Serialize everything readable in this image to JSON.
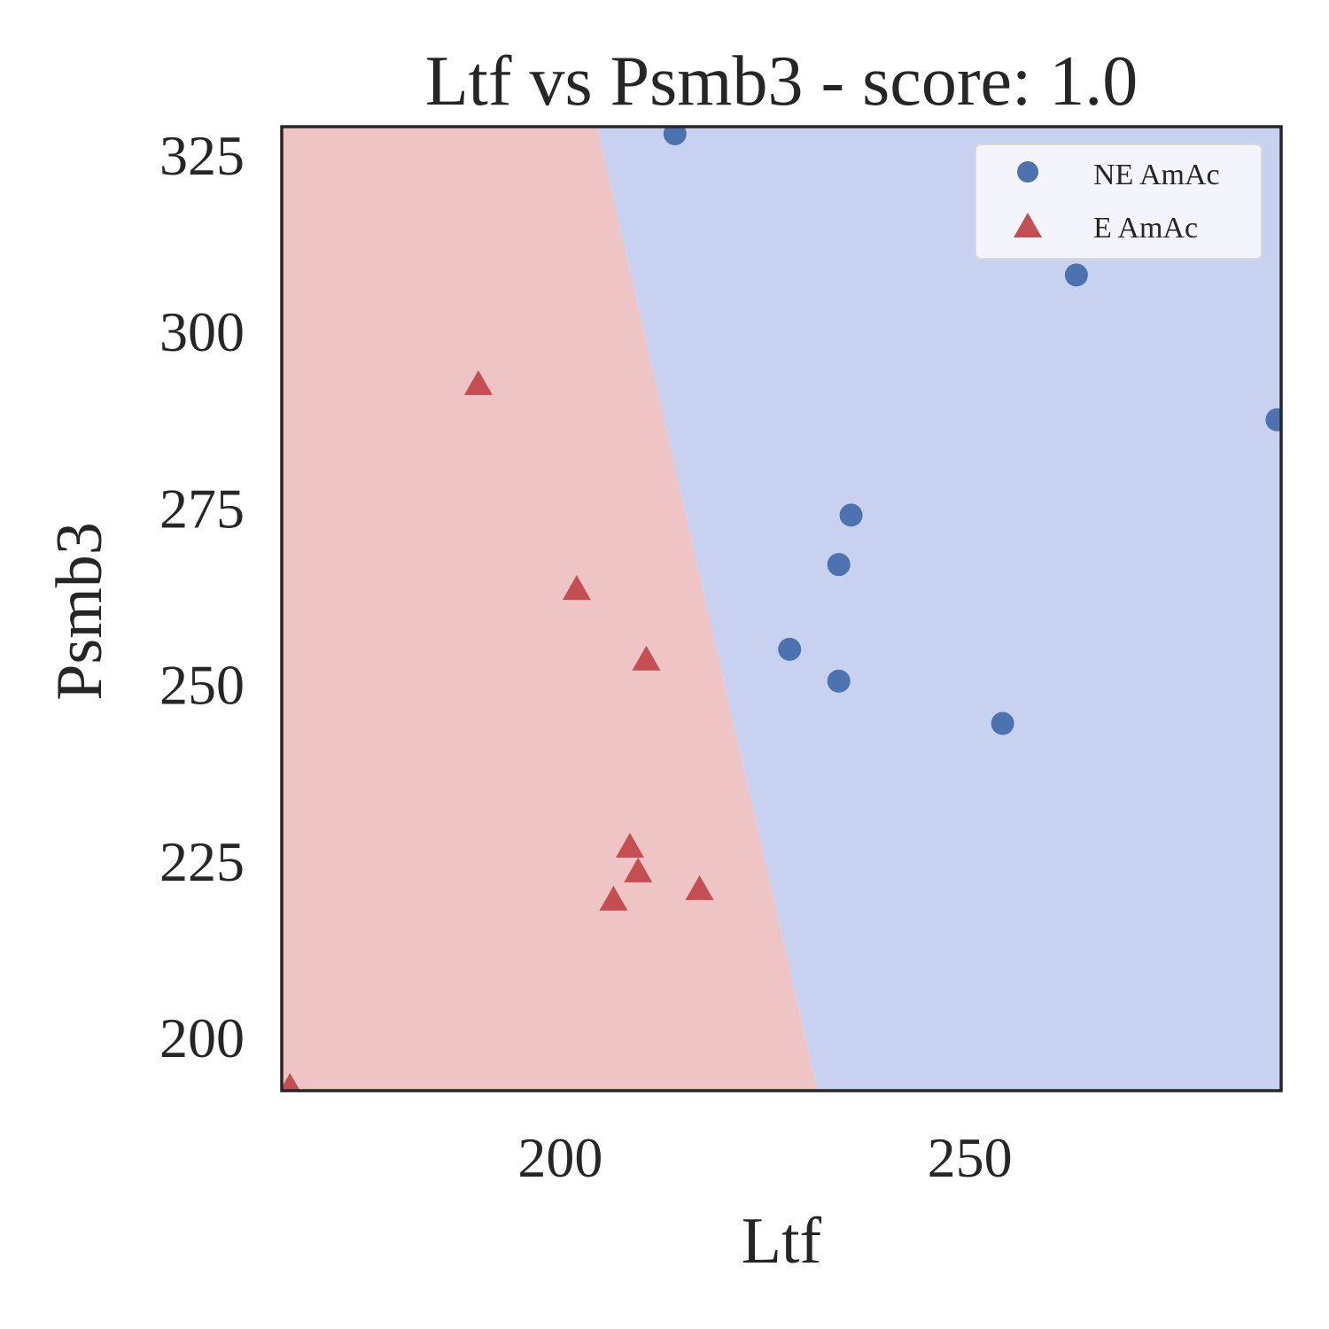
{
  "chart_data": {
    "type": "scatter",
    "title": "Ltf vs Psmb3 - score: 1.0",
    "xlabel": "Ltf",
    "ylabel": "Psmb3",
    "xlim": [
      166,
      288
    ],
    "ylim": [
      192.5,
      329
    ],
    "x_ticks": [
      200,
      250
    ],
    "y_ticks": [
      200,
      225,
      250,
      275,
      300,
      325
    ],
    "grid": false,
    "legend_position": "top-right",
    "decision_boundary": {
      "points": [
        [
          204.5,
          329
        ],
        [
          231.4,
          192.5
        ]
      ],
      "left_region_class": "E AmAc",
      "right_region_class": "NE AmAc",
      "left_color": "#eec4c4",
      "right_color": "#c9d1f1"
    },
    "series": [
      {
        "name": "NE AmAc",
        "marker": "circle",
        "color": "#4c72b0",
        "points": [
          [
            214,
            328
          ],
          [
            263,
            308
          ],
          [
            287.5,
            287.5
          ],
          [
            235.5,
            274
          ],
          [
            234,
            267
          ],
          [
            228,
            255
          ],
          [
            234,
            250.5
          ],
          [
            254,
            244.5
          ]
        ]
      },
      {
        "name": "E AmAc",
        "marker": "triangle",
        "color": "#c44e52",
        "points": [
          [
            190,
            292.5
          ],
          [
            202,
            263.5
          ],
          [
            210.5,
            253.5
          ],
          [
            208.5,
            227
          ],
          [
            209.5,
            223.5
          ],
          [
            206.5,
            219.5
          ],
          [
            217,
            221
          ],
          [
            167,
            193
          ]
        ]
      }
    ]
  }
}
